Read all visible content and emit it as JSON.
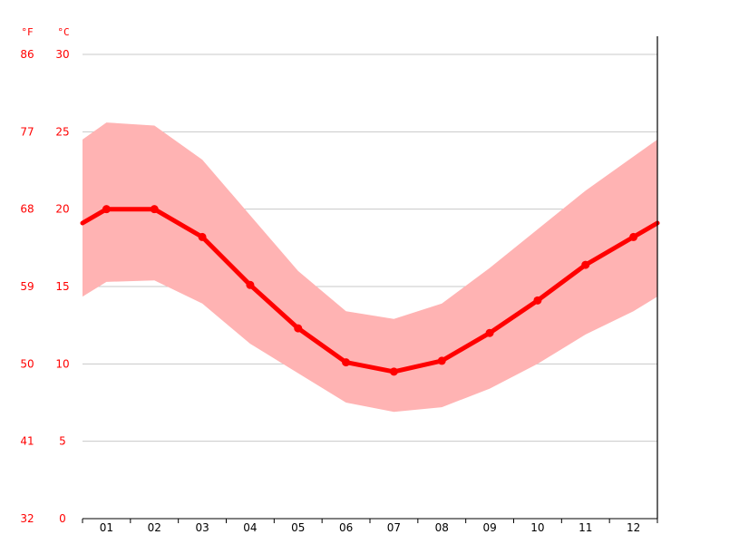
{
  "chart_data": {
    "type": "area",
    "title": "",
    "units": {
      "fahrenheit": "°F",
      "celsius": "°C"
    },
    "categories": [
      "01",
      "02",
      "03",
      "04",
      "05",
      "06",
      "07",
      "08",
      "09",
      "10",
      "11",
      "12"
    ],
    "series": [
      {
        "values": [
          20.0,
          20.0,
          18.2,
          15.1,
          12.3,
          10.1,
          9.5,
          10.2,
          12.0,
          14.1,
          16.4,
          18.2
        ]
      },
      {
        "values": [
          25.6,
          25.4,
          23.2,
          19.6,
          16.0,
          13.4,
          12.9,
          13.9,
          16.2,
          18.7,
          21.2,
          23.4
        ]
      },
      {
        "values": [
          15.3,
          15.4,
          13.9,
          11.3,
          9.4,
          7.5,
          6.9,
          7.2,
          8.4,
          10.0,
          11.9,
          13.4
        ]
      }
    ],
    "y_celsius": {
      "ticks": [
        0,
        5,
        10,
        15,
        20,
        25,
        30
      ],
      "range": [
        0,
        30
      ]
    },
    "y_fahrenheit": {
      "ticks": [
        32,
        41,
        50,
        59,
        68,
        77,
        86
      ]
    },
    "colors": {
      "line": "#ff0000",
      "band": "#ffb3b3",
      "grid": "#c8c8c8",
      "axis_label": "#ff0000",
      "tick_label": "#000000",
      "axis": "#000000"
    },
    "grid": true
  }
}
